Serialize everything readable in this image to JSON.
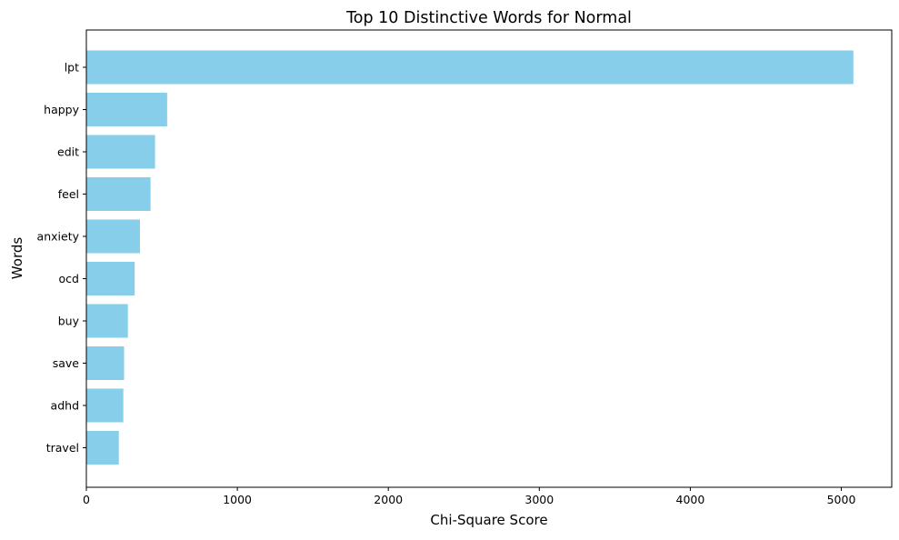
{
  "chart_data": {
    "type": "bar",
    "orientation": "horizontal",
    "title": "Top 10 Distinctive Words for Normal",
    "xlabel": "Chi-Square Score",
    "ylabel": "Words",
    "categories": [
      "lpt",
      "happy",
      "edit",
      "feel",
      "anxiety",
      "ocd",
      "buy",
      "save",
      "adhd",
      "travel"
    ],
    "values": [
      5080,
      535,
      455,
      425,
      355,
      320,
      275,
      250,
      245,
      215
    ],
    "xlim": [
      0,
      5334
    ],
    "xticks": [
      0,
      1000,
      2000,
      3000,
      4000,
      5000
    ],
    "bar_color": "#87ceeb",
    "grid": false,
    "legend": null
  }
}
